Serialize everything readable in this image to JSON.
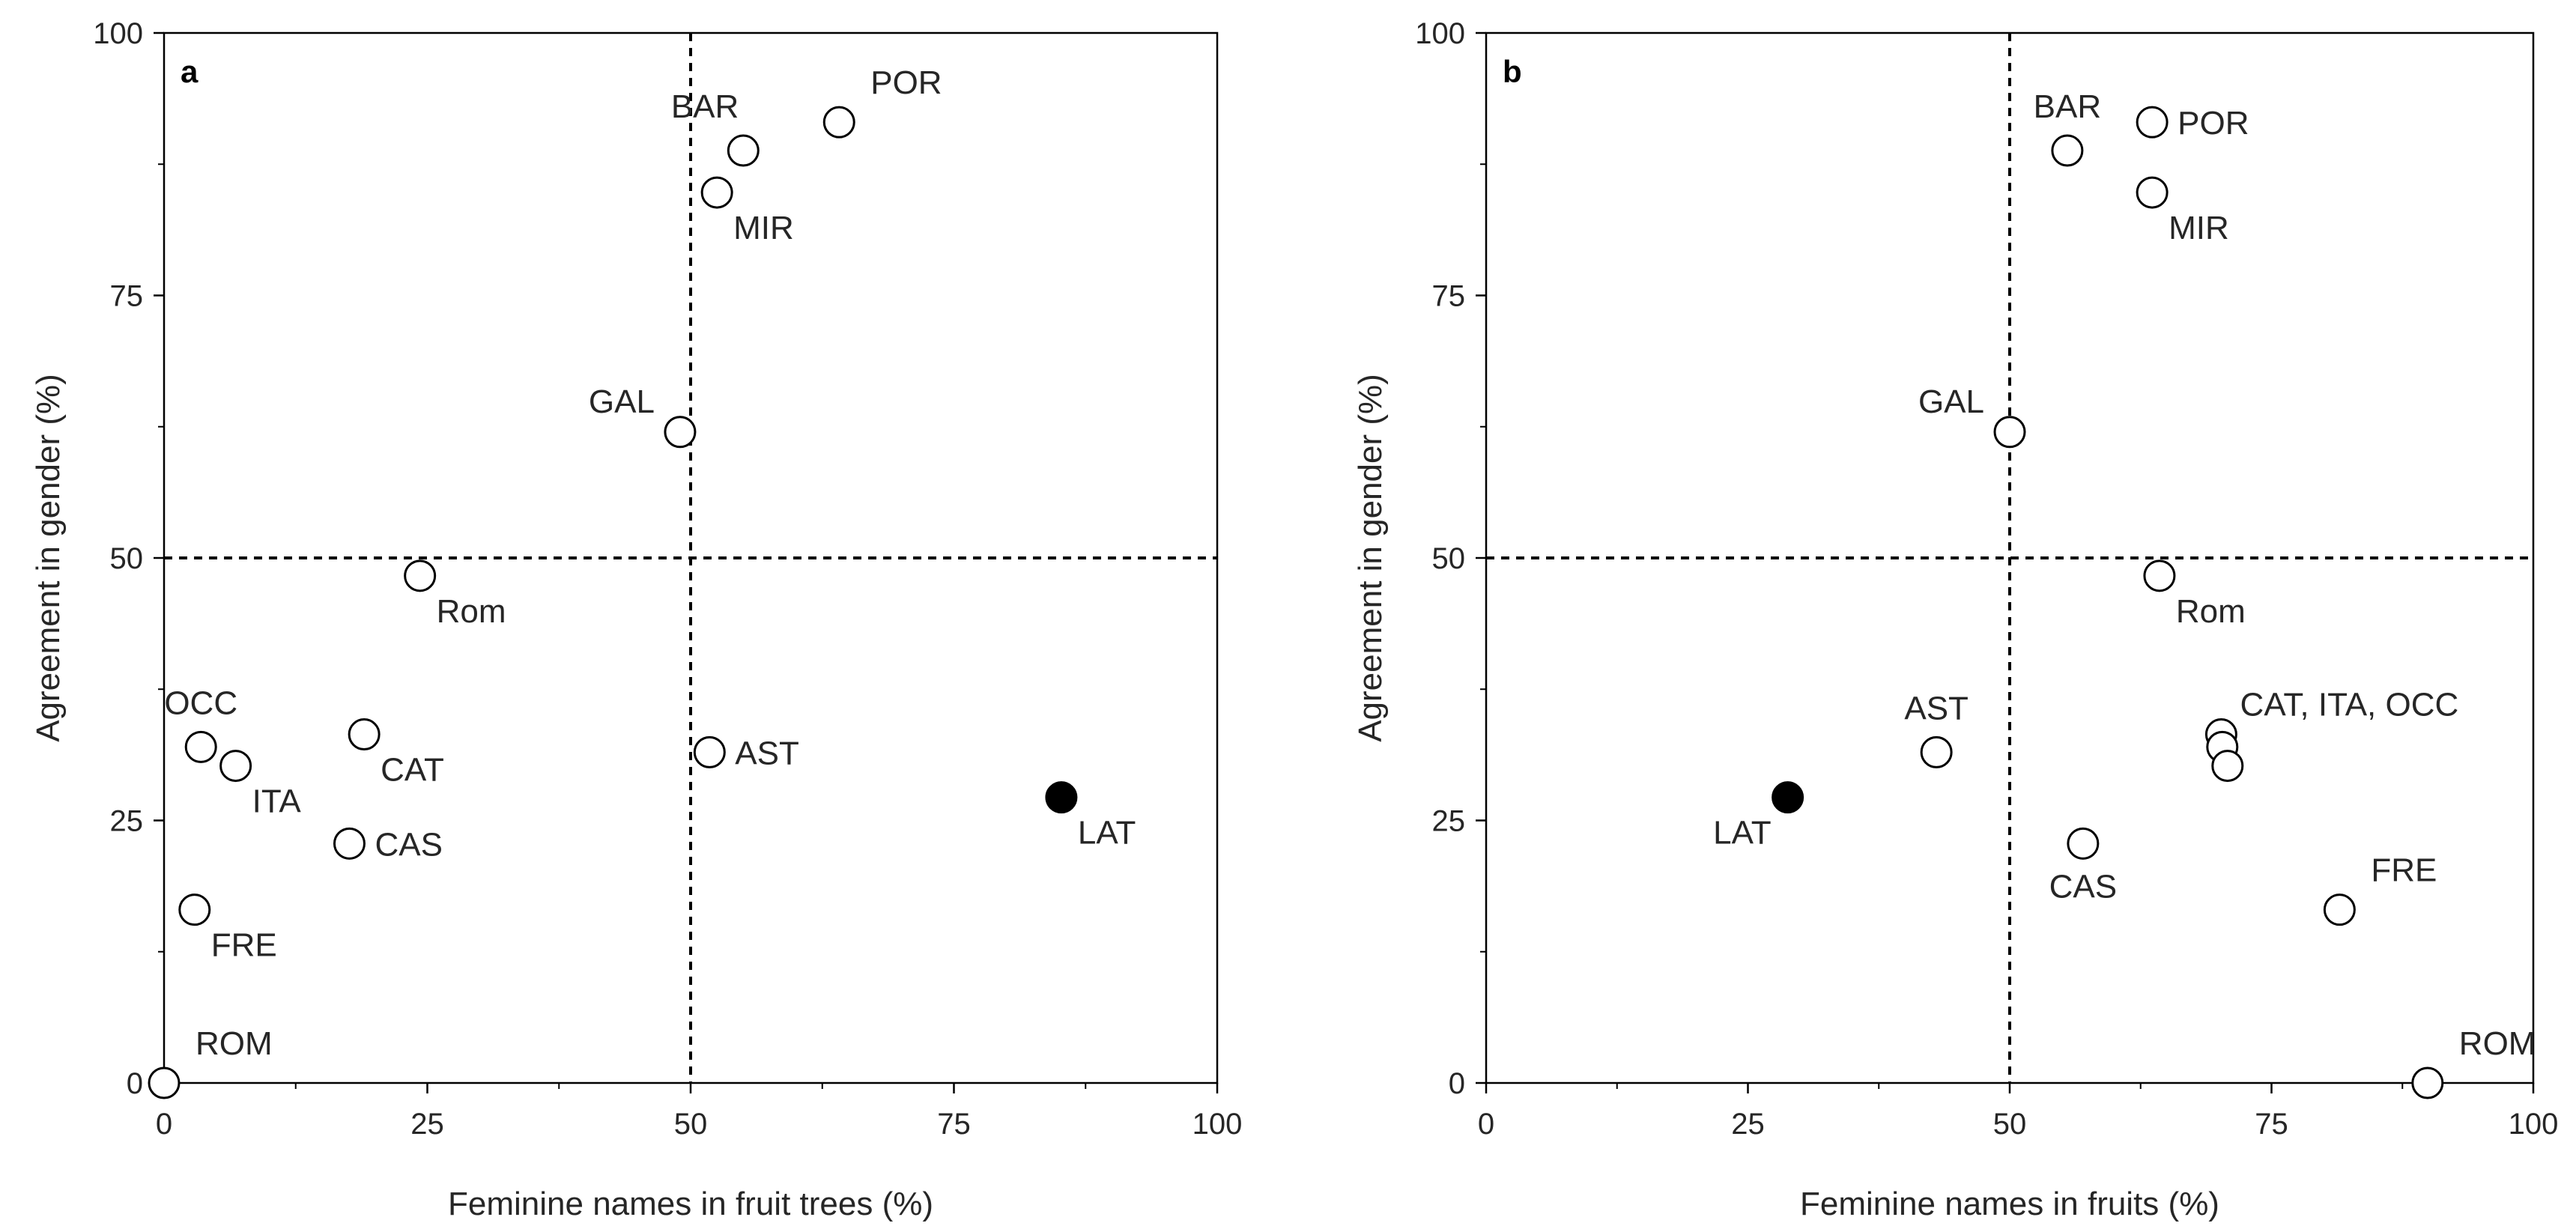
{
  "colors": {
    "axis": "#000000",
    "text": "#262626",
    "marker_fill_open": "#ffffff",
    "marker_fill_solid": "#000000"
  },
  "chart_data": [
    {
      "type": "scatter",
      "panel": "a",
      "xlabel": "Feminine names in fruit trees (%)",
      "ylabel": "Agreement in gender (%)",
      "xlim": [
        0,
        100
      ],
      "ylim": [
        0,
        100
      ],
      "xticks": [
        0,
        25,
        50,
        75,
        100
      ],
      "yticks": [
        0,
        25,
        50,
        75,
        100
      ],
      "reference_lines": {
        "x": 50,
        "y": 50,
        "style": "dashed"
      },
      "points": [
        {
          "label": "POR",
          "x": 64.1,
          "y": 91.5,
          "fill": "open",
          "label_pos": "above-right"
        },
        {
          "label": "BAR",
          "x": 55.0,
          "y": 88.8,
          "fill": "open",
          "label_pos": "above-left"
        },
        {
          "label": "MIR",
          "x": 52.5,
          "y": 84.8,
          "fill": "open",
          "label_pos": "below-right"
        },
        {
          "label": "GAL",
          "x": 49.0,
          "y": 62.0,
          "fill": "open",
          "label_pos": "left"
        },
        {
          "label": "Rom",
          "x": 24.3,
          "y": 48.3,
          "fill": "open",
          "label_pos": "below-right"
        },
        {
          "label": "OCC",
          "x": 3.5,
          "y": 32.0,
          "fill": "open",
          "label_pos": "above"
        },
        {
          "label": "ITA",
          "x": 6.8,
          "y": 30.2,
          "fill": "open",
          "label_pos": "below-right"
        },
        {
          "label": "CAT",
          "x": 19.0,
          "y": 33.2,
          "fill": "open",
          "label_pos": "below-right"
        },
        {
          "label": "AST",
          "x": 51.8,
          "y": 31.5,
          "fill": "open",
          "label_pos": "right"
        },
        {
          "label": "LAT",
          "x": 85.2,
          "y": 27.2,
          "fill": "solid",
          "label_pos": "below-right"
        },
        {
          "label": "CAS",
          "x": 17.6,
          "y": 22.8,
          "fill": "open",
          "label_pos": "right"
        },
        {
          "label": "FRE",
          "x": 2.9,
          "y": 16.5,
          "fill": "open",
          "label_pos": "below-right"
        },
        {
          "label": "ROM",
          "x": 0.0,
          "y": 0.0,
          "fill": "open",
          "label_pos": "above-right"
        }
      ]
    },
    {
      "type": "scatter",
      "panel": "b",
      "xlabel": "Feminine names in fruits (%)",
      "ylabel": "Agreement in gender (%)",
      "xlim": [
        0,
        100
      ],
      "ylim": [
        0,
        100
      ],
      "xticks": [
        0,
        25,
        50,
        75,
        100
      ],
      "yticks": [
        0,
        25,
        50,
        75,
        100
      ],
      "reference_lines": {
        "x": 50,
        "y": 50,
        "style": "dashed"
      },
      "points": [
        {
          "label": "POR",
          "x": 63.6,
          "y": 91.5,
          "fill": "open",
          "label_pos": "right"
        },
        {
          "label": "BAR",
          "x": 55.5,
          "y": 88.8,
          "fill": "open",
          "label_pos": "above"
        },
        {
          "label": "MIR",
          "x": 63.6,
          "y": 84.8,
          "fill": "open",
          "label_pos": "below-right"
        },
        {
          "label": "GAL",
          "x": 50.0,
          "y": 62.0,
          "fill": "open",
          "label_pos": "left"
        },
        {
          "label": "Rom",
          "x": 64.3,
          "y": 48.3,
          "fill": "open",
          "label_pos": "below-right"
        },
        {
          "label": "CAT",
          "x": 70.2,
          "y": 33.2,
          "fill": "open",
          "label_pos": "none"
        },
        {
          "label": "OCC",
          "x": 70.3,
          "y": 32.0,
          "fill": "open",
          "label_pos": "none"
        },
        {
          "label": "ITA",
          "x": 70.8,
          "y": 30.2,
          "fill": "open",
          "label_pos": "none"
        },
        {
          "label": "AST",
          "x": 43.0,
          "y": 31.5,
          "fill": "open",
          "label_pos": "above"
        },
        {
          "label": "LAT",
          "x": 28.8,
          "y": 27.2,
          "fill": "solid",
          "label_pos": "below-left"
        },
        {
          "label": "CAS",
          "x": 57.0,
          "y": 22.8,
          "fill": "open",
          "label_pos": "below"
        },
        {
          "label": "FRE",
          "x": 81.5,
          "y": 16.5,
          "fill": "open",
          "label_pos": "above-right"
        },
        {
          "label": "ROM",
          "x": 89.9,
          "y": 0.0,
          "fill": "open",
          "label_pos": "above-right"
        }
      ],
      "group_annotations": [
        {
          "text": "CAT, ITA,  OCC",
          "x": 72.0,
          "y": 35.0
        }
      ]
    }
  ]
}
